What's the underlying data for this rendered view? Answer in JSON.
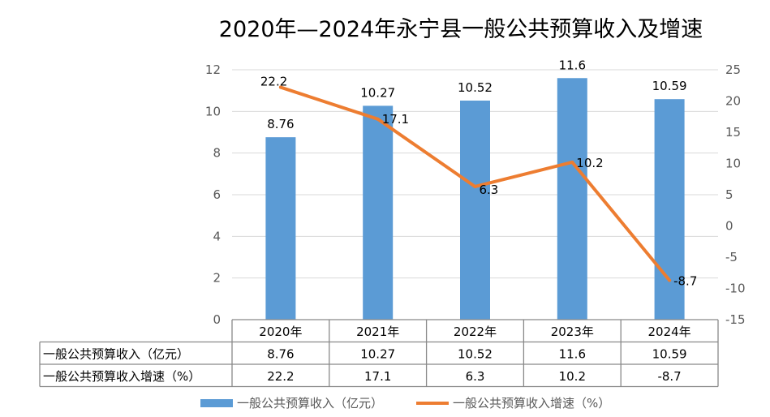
{
  "chart_data": {
    "type": "bar",
    "title": "2020年—2024年永宁县一般公共预算收入及增速",
    "categories": [
      "2020年",
      "2021年",
      "2022年",
      "2023年",
      "2024年"
    ],
    "series": [
      {
        "name": "一般公共预算收入（亿元）",
        "type": "bar",
        "axis": "left",
        "color": "#5b9bd5",
        "values": [
          8.76,
          10.27,
          10.52,
          11.6,
          10.59
        ],
        "labels": [
          "8.76",
          "10.27",
          "10.52",
          "11.6",
          "10.59"
        ]
      },
      {
        "name": "一般公共预算收入增速（%）",
        "type": "line",
        "axis": "right",
        "color": "#ed7d31",
        "values": [
          22.2,
          17.1,
          6.3,
          10.2,
          -8.7
        ],
        "labels": [
          "22.2",
          "17.1",
          "6.3",
          "10.2",
          "-8.7"
        ]
      }
    ],
    "y_left": {
      "range": [
        0,
        12
      ],
      "ticks": [
        "0",
        "2",
        "4",
        "6",
        "8",
        "10",
        "12"
      ]
    },
    "y_right": {
      "range": [
        -15,
        25
      ],
      "ticks": [
        "-15",
        "-10",
        "-5",
        "0",
        "5",
        "10",
        "15",
        "20",
        "25"
      ]
    },
    "grid": true,
    "legend": "bottom",
    "data_table": true
  }
}
